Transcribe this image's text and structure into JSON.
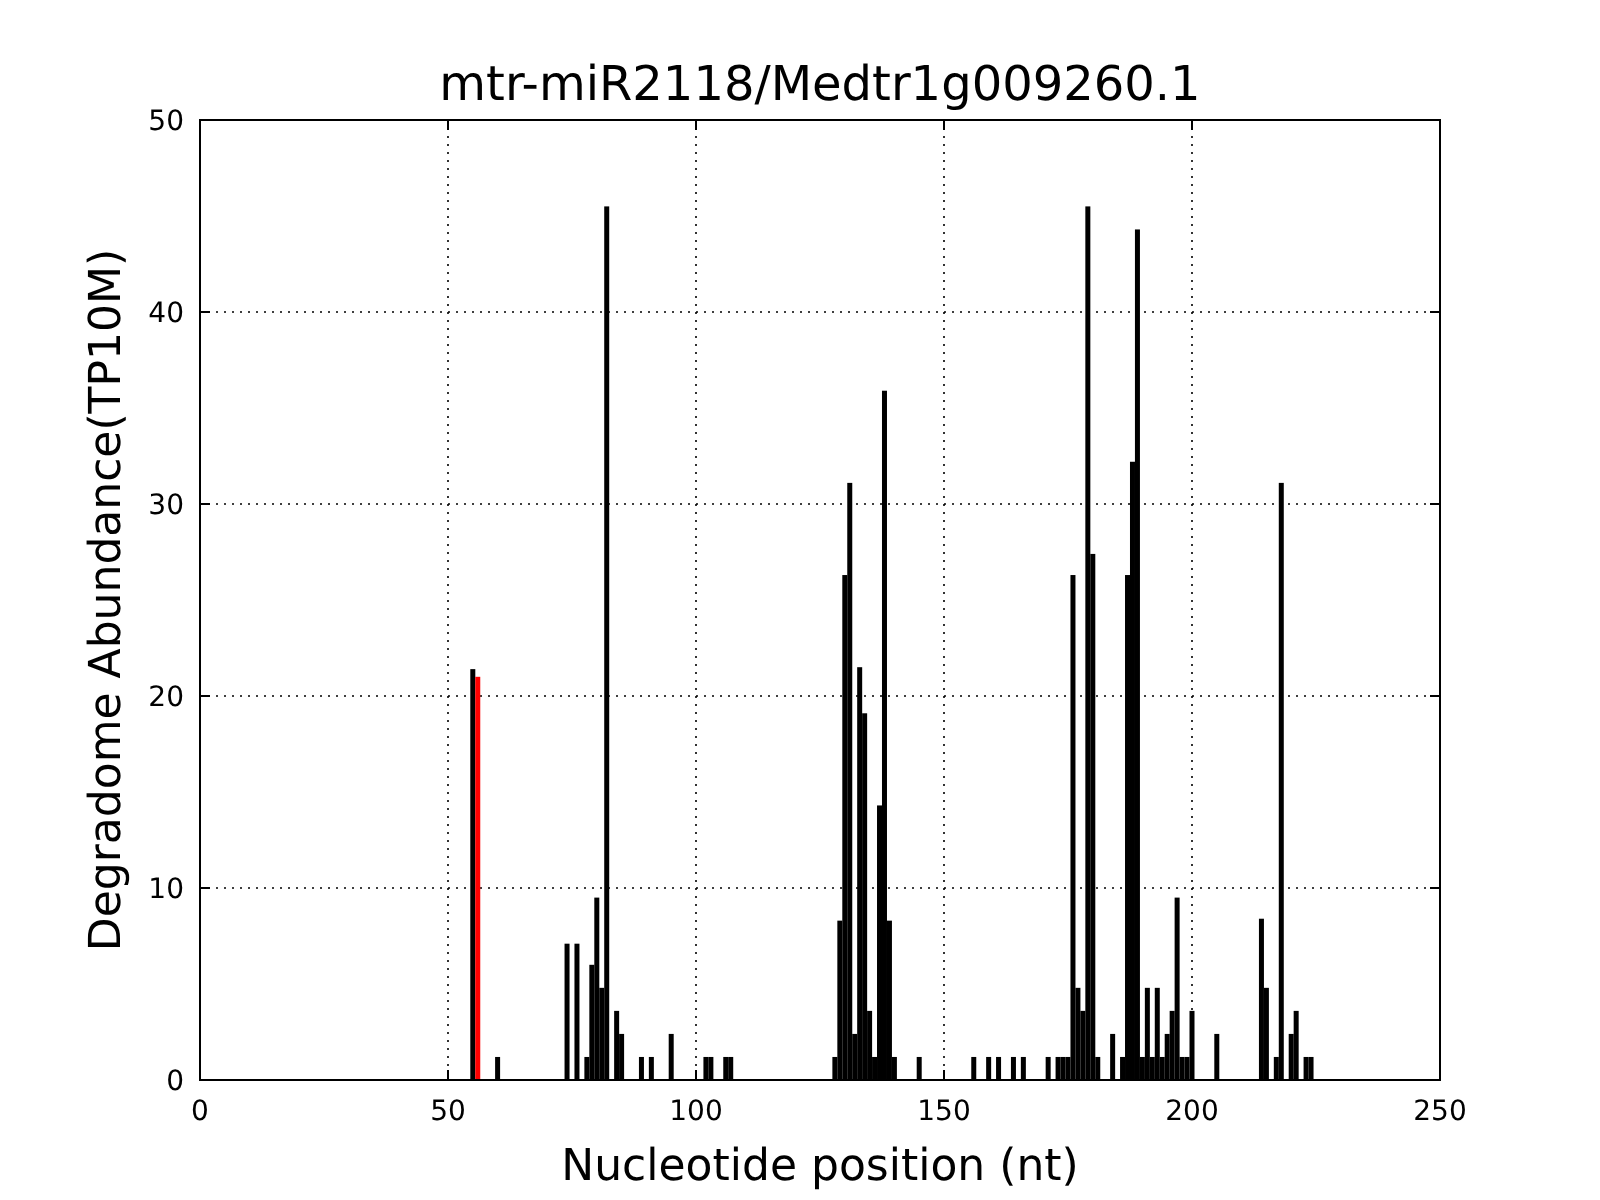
{
  "chart_data": {
    "type": "bar",
    "title": "mtr-miR2118/Medtr1g009260.1",
    "xlabel": "Nucleotide position (nt)",
    "ylabel": "Degradome Abundance(TP10M)",
    "xlim": [
      0,
      250
    ],
    "xticks": [
      0,
      50,
      100,
      150,
      200,
      250
    ],
    "ylim": [
      0,
      50
    ],
    "yticks": [
      0,
      10,
      20,
      30,
      40,
      50
    ],
    "grid": true,
    "series": [
      {
        "color": "#000000",
        "x": [
          55,
          60,
          74,
          76,
          78,
          79,
          80,
          81,
          82,
          84,
          85,
          89,
          91,
          95,
          102,
          103,
          106,
          107,
          128,
          129,
          130,
          131,
          132,
          133,
          134,
          135,
          136,
          137,
          138,
          139,
          140,
          145,
          156,
          159,
          161,
          164,
          166,
          171,
          173,
          174,
          175,
          176,
          177,
          178,
          179,
          180,
          181,
          184,
          186,
          187,
          188,
          189,
          190,
          191,
          192,
          193,
          194,
          195,
          196,
          197,
          198,
          199,
          200,
          205,
          214,
          215,
          217,
          218,
          220,
          221,
          223,
          224
        ],
        "values": [
          21.4,
          1.2,
          7.1,
          7.1,
          1.2,
          6.0,
          9.5,
          4.8,
          45.5,
          3.6,
          2.4,
          1.2,
          1.2,
          2.4,
          1.2,
          1.2,
          1.2,
          1.2,
          1.2,
          8.3,
          26.3,
          31.1,
          2.4,
          21.5,
          19.1,
          3.6,
          1.2,
          14.3,
          35.9,
          8.3,
          1.2,
          1.2,
          1.2,
          1.2,
          1.2,
          1.2,
          1.2,
          1.2,
          1.2,
          1.2,
          1.2,
          26.3,
          4.8,
          3.6,
          45.5,
          27.4,
          1.2,
          2.4,
          1.2,
          26.3,
          32.2,
          44.3,
          1.2,
          4.8,
          1.2,
          4.8,
          1.2,
          2.4,
          3.6,
          9.5,
          1.2,
          1.2,
          3.6,
          2.4,
          8.4,
          4.8,
          1.2,
          31.1,
          2.4,
          3.6,
          1.2,
          1.2
        ]
      },
      {
        "color": "#ff0000",
        "x": [
          56
        ],
        "values": [
          21.0
        ]
      }
    ]
  }
}
